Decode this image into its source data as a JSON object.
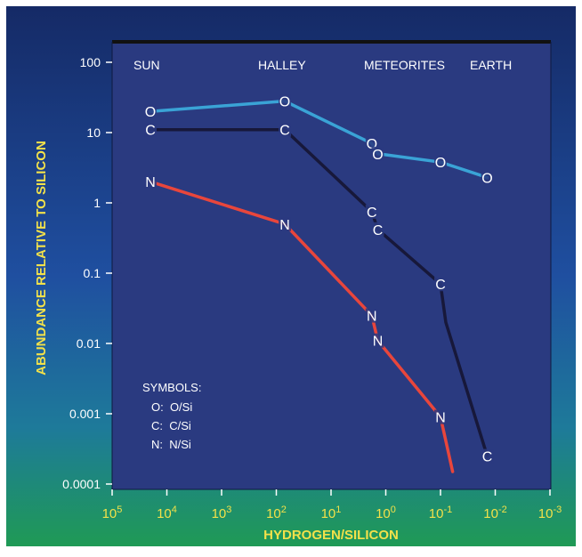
{
  "chart_data": {
    "type": "line",
    "xlabel": "HYDROGEN/SILICON",
    "ylabel": "ABUNDANCE RELATIVE TO SILICON",
    "x_scale": "log-reversed",
    "y_scale": "log",
    "xlim": [
      100000,
      0.001
    ],
    "ylim": [
      0.0001,
      100
    ],
    "x_ticks": [
      {
        "base": "10",
        "exp": "5"
      },
      {
        "base": "10",
        "exp": "4"
      },
      {
        "base": "10",
        "exp": "3"
      },
      {
        "base": "10",
        "exp": "2"
      },
      {
        "base": "10",
        "exp": "1"
      },
      {
        "base": "10",
        "exp": "0"
      },
      {
        "base": "10",
        "exp": "-1"
      },
      {
        "base": "10",
        "exp": "-2"
      },
      {
        "base": "10",
        "exp": "-3"
      }
    ],
    "y_ticks": [
      "100",
      "10",
      "1",
      "0.1",
      "0.01",
      "0.001",
      "0.0001"
    ],
    "region_labels": [
      "SUN",
      "HALLEY",
      "METEORITES",
      "EARTH"
    ],
    "legend": {
      "title": "SYMBOLS:",
      "entries": [
        "O:  O/Si",
        "C:  C/Si",
        "N:  N/Si"
      ]
    },
    "series": [
      {
        "symbol": "O",
        "color": "#3aa3d6",
        "points": [
          [
            20000,
            20
          ],
          [
            70,
            28
          ],
          [
            1.8,
            7
          ],
          [
            1.4,
            5
          ],
          [
            0.1,
            3.8
          ],
          [
            0.014,
            2.3
          ]
        ]
      },
      {
        "symbol": "C",
        "color": "#17183a",
        "points": [
          [
            20000,
            11
          ],
          [
            70,
            11
          ],
          [
            1.8,
            0.75
          ],
          [
            1.4,
            0.42
          ],
          [
            0.1,
            0.07
          ],
          [
            0.014,
            0.00025
          ]
        ],
        "line_points": [
          [
            20000,
            11
          ],
          [
            70,
            11
          ],
          [
            1.8,
            0.75
          ],
          [
            1.4,
            0.42
          ],
          [
            0.1,
            0.07
          ],
          [
            0.08,
            0.02
          ],
          [
            0.014,
            0.00025
          ]
        ]
      },
      {
        "symbol": "N",
        "color": "#e8463c",
        "points": [
          [
            20000,
            2
          ],
          [
            70,
            0.5
          ],
          [
            1.8,
            0.025
          ],
          [
            1.4,
            0.011
          ],
          [
            0.1,
            0.0009
          ]
        ],
        "line_points": [
          [
            20000,
            2
          ],
          [
            70,
            0.5
          ],
          [
            1.8,
            0.025
          ],
          [
            1.4,
            0.011
          ],
          [
            0.1,
            0.0009
          ],
          [
            0.06,
            0.00015
          ]
        ]
      }
    ]
  }
}
